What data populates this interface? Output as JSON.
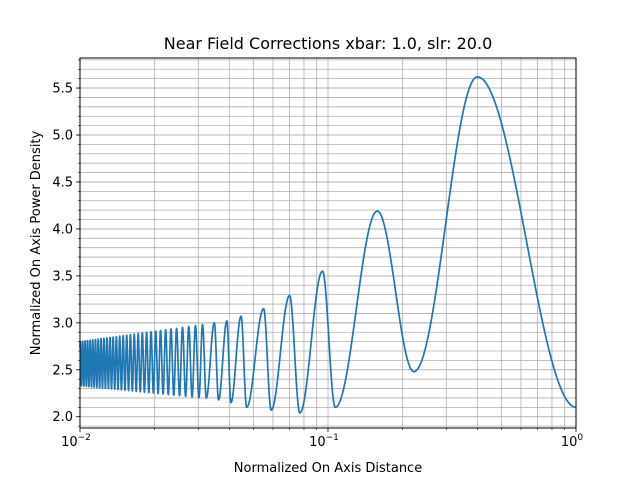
{
  "chart_data": {
    "type": "line",
    "title": "Near Field Corrections xbar: 1.0, slr: 20.0",
    "xlabel": "Normalized On Axis Distance",
    "ylabel": "Normalized On Axis Power Density",
    "xscale": "log",
    "xlim": [
      0.01,
      1.0
    ],
    "ylim": [
      1.88,
      5.82
    ],
    "grid": "both",
    "x_ticks": [
      {
        "value": 0.01,
        "base": "10",
        "exp": "−2"
      },
      {
        "value": 0.1,
        "base": "10",
        "exp": "−1"
      },
      {
        "value": 1.0,
        "base": "10",
        "exp": "0"
      }
    ],
    "y_ticks": [
      "2.0",
      "2.5",
      "3.0",
      "3.5",
      "4.0",
      "4.5",
      "5.0",
      "5.5"
    ],
    "series": [
      {
        "color": "#1f77b4",
        "anchors": [
          [
            0.01,
            2.8
          ],
          [
            0.0312,
            2.98
          ],
          [
            0.0323,
            2.2
          ],
          [
            0.0348,
            3.0
          ],
          [
            0.0362,
            2.18
          ],
          [
            0.0391,
            3.02
          ],
          [
            0.0406,
            2.15
          ],
          [
            0.0446,
            3.07
          ],
          [
            0.047,
            2.1
          ],
          [
            0.055,
            3.15
          ],
          [
            0.059,
            2.07
          ],
          [
            0.07,
            3.29
          ],
          [
            0.077,
            2.04
          ],
          [
            0.095,
            3.55
          ],
          [
            0.107,
            2.1
          ],
          [
            0.158,
            4.19
          ],
          [
            0.222,
            2.48
          ],
          [
            0.4,
            5.62
          ],
          [
            1.0,
            2.1
          ]
        ]
      }
    ]
  }
}
